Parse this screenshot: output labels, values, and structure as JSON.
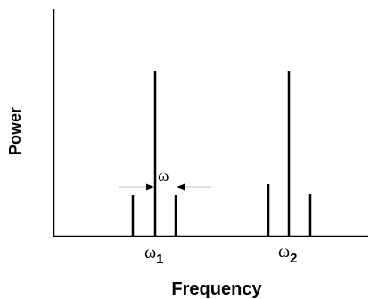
{
  "labels": {
    "x_axis": "Frequency",
    "y_axis": "Power",
    "omega_1": "ω",
    "omega_1_sub": "1",
    "omega_2": "ω",
    "omega_2_sub": "2",
    "spacing": "ω"
  },
  "diagram": {
    "description_of_lines": "two spectral lines each with a pair of shorter sidebands",
    "group_1": {
      "sideband_left": 0.29,
      "carrier": 1.0,
      "sideband_right": 0.29
    },
    "group_2": {
      "sideband_left": 0.32,
      "carrier": 1.0,
      "sideband_right": 0.26
    }
  }
}
